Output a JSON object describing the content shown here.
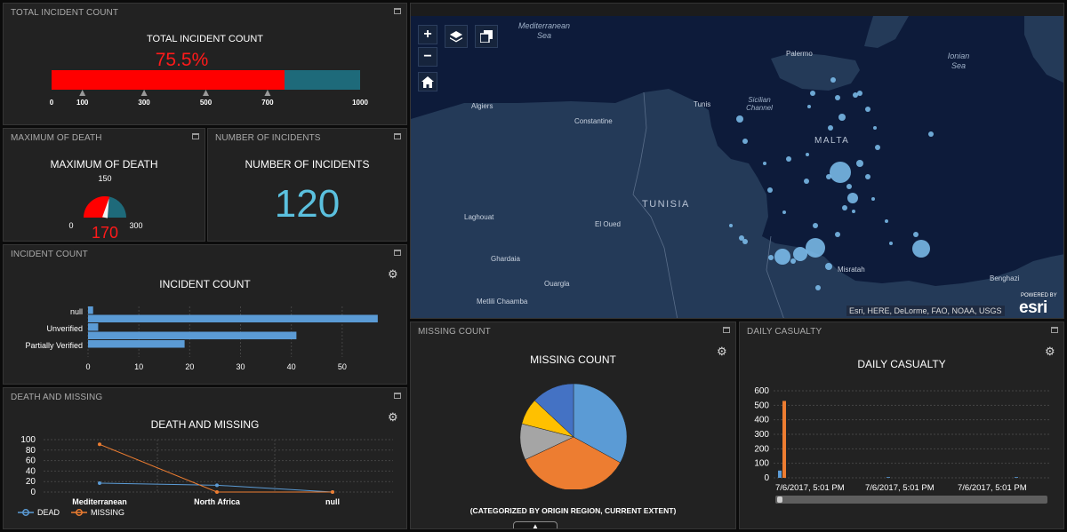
{
  "colors": {
    "panel_bg": "#222222",
    "red": "#ff0000",
    "teal": "#1e6a7a",
    "blue_bar": "#5b9bd5",
    "orange": "#ed7d31",
    "gray": "#a5a5a5",
    "yellow": "#ffc000",
    "dark_blue": "#4472c4",
    "big_number": "#5bc0de",
    "map_sea": "#0d1b3a",
    "map_land": "#243a58"
  },
  "total_incident": {
    "header": "TOTAL INCIDENT COUNT",
    "title": "TOTAL INCIDENT COUNT",
    "percent_label": "75.5%",
    "fraction": 0.755,
    "ticks": [
      "0",
      "100",
      "300",
      "500",
      "700",
      "1000"
    ],
    "tick_values": [
      0,
      100,
      300,
      500,
      700,
      1000
    ],
    "markers": [
      100,
      300,
      500,
      700
    ],
    "max": 1000
  },
  "max_death": {
    "header": "MAXIMUM OF DEATH",
    "title": "MAXIMUM OF DEATH",
    "value_label": "170",
    "value": 170,
    "min_label": "0",
    "mid_label": "150",
    "max_label": "300",
    "min": 0,
    "max": 300
  },
  "num_incidents": {
    "header": "NUMBER OF INCIDENTS",
    "title": "NUMBER OF INCIDENTS",
    "value": "120"
  },
  "incident_count": {
    "header": "INCIDENT COUNT",
    "title": "INCIDENT COUNT",
    "gear_icon": "gear-icon"
  },
  "death_missing": {
    "header": "DEATH AND MISSING",
    "title": "DEATH AND MISSING",
    "gear_icon": "gear-icon"
  },
  "map": {
    "labels": {
      "sea_med_1": "Mediterranean",
      "sea_med_2": "Sea",
      "ionian_1": "Ionian",
      "ionian_2": "Sea",
      "palermo": "Palermo",
      "sicilian_1": "Sicilian",
      "sicilian_2": "Channel",
      "algiers": "Algiers",
      "tunis": "Tunis",
      "constantine": "Constantine",
      "malta": "MALTA",
      "tunisia": "TUNISIA",
      "laghouat": "Laghouat",
      "el_oued": "El Oued",
      "ghardaia": "Ghardaia",
      "ouargla": "Ouargla",
      "metlili": "Metlili Chaamba",
      "misratah": "Misratah",
      "benghazi": "Benghazi"
    },
    "zoom_in": "+",
    "zoom_out": "−",
    "attribution": "Esri, HERE, DeLorme, FAO, NOAA, USGS",
    "powered_by": "POWERED BY",
    "brand": "esri"
  },
  "missing_count": {
    "header": "MISSING COUNT",
    "title": "MISSING COUNT",
    "subtitle": "(CATEGORIZED BY ORIGIN REGION, CURRENT EXTENT)",
    "gear_icon": "gear-icon",
    "expand_icon": "chevron-up-icon"
  },
  "daily_casualty": {
    "header": "DAILY CASUALTY",
    "title": "DAILY CASUALTY",
    "gear_icon": "gear-icon"
  },
  "chart_data": [
    {
      "id": "incident_count",
      "type": "bar",
      "orientation": "horizontal",
      "title": "INCIDENT COUNT",
      "categories": [
        "null",
        "Unverified",
        "Partially Verified"
      ],
      "series": [
        {
          "values": [
            1,
            2,
            19
          ],
          "color": "#5b9bd5"
        },
        {
          "values": [
            57,
            41,
            null
          ],
          "color": "#5b9bd5"
        }
      ],
      "xlim": [
        0,
        60
      ],
      "xticks": [
        0,
        10,
        20,
        30,
        40,
        50
      ],
      "grid": true
    },
    {
      "id": "death_missing",
      "type": "line",
      "title": "DEATH AND MISSING",
      "categories": [
        "Mediterranean",
        "North Africa",
        "null"
      ],
      "series": [
        {
          "name": "DEAD",
          "values": [
            17,
            13,
            0
          ],
          "color": "#5b9bd5"
        },
        {
          "name": "MISSING",
          "values": [
            91,
            0,
            0
          ],
          "color": "#ed7d31"
        }
      ],
      "ylim": [
        0,
        100
      ],
      "yticks": [
        0,
        20,
        40,
        60,
        80,
        100
      ],
      "legend": "bottom-left",
      "grid": true
    },
    {
      "id": "missing_count",
      "type": "pie",
      "title": "MISSING COUNT",
      "subtitle": "(CATEGORIZED BY ORIGIN REGION, CURRENT EXTENT)",
      "slices": [
        {
          "value": 0.33,
          "color": "#5b9bd5"
        },
        {
          "value": 0.35,
          "color": "#ed7d31"
        },
        {
          "value": 0.11,
          "color": "#a5a5a5"
        },
        {
          "value": 0.08,
          "color": "#ffc000"
        },
        {
          "value": 0.13,
          "color": "#4472c4"
        }
      ]
    },
    {
      "id": "daily_casualty",
      "type": "bar",
      "title": "DAILY CASUALTY",
      "x_tick_labels": [
        "7/6/2017, 5:01 PM",
        "7/6/2017, 5:01 PM",
        "7/6/2017, 5:01 PM"
      ],
      "series": [
        {
          "values": [
            50,
            5,
            5
          ],
          "color": "#5b9bd5"
        },
        {
          "values": [
            530,
            0,
            0
          ],
          "color": "#ed7d31"
        }
      ],
      "ylim": [
        0,
        600
      ],
      "yticks": [
        0,
        100,
        200,
        300,
        400,
        500,
        600
      ],
      "grid": true
    }
  ]
}
